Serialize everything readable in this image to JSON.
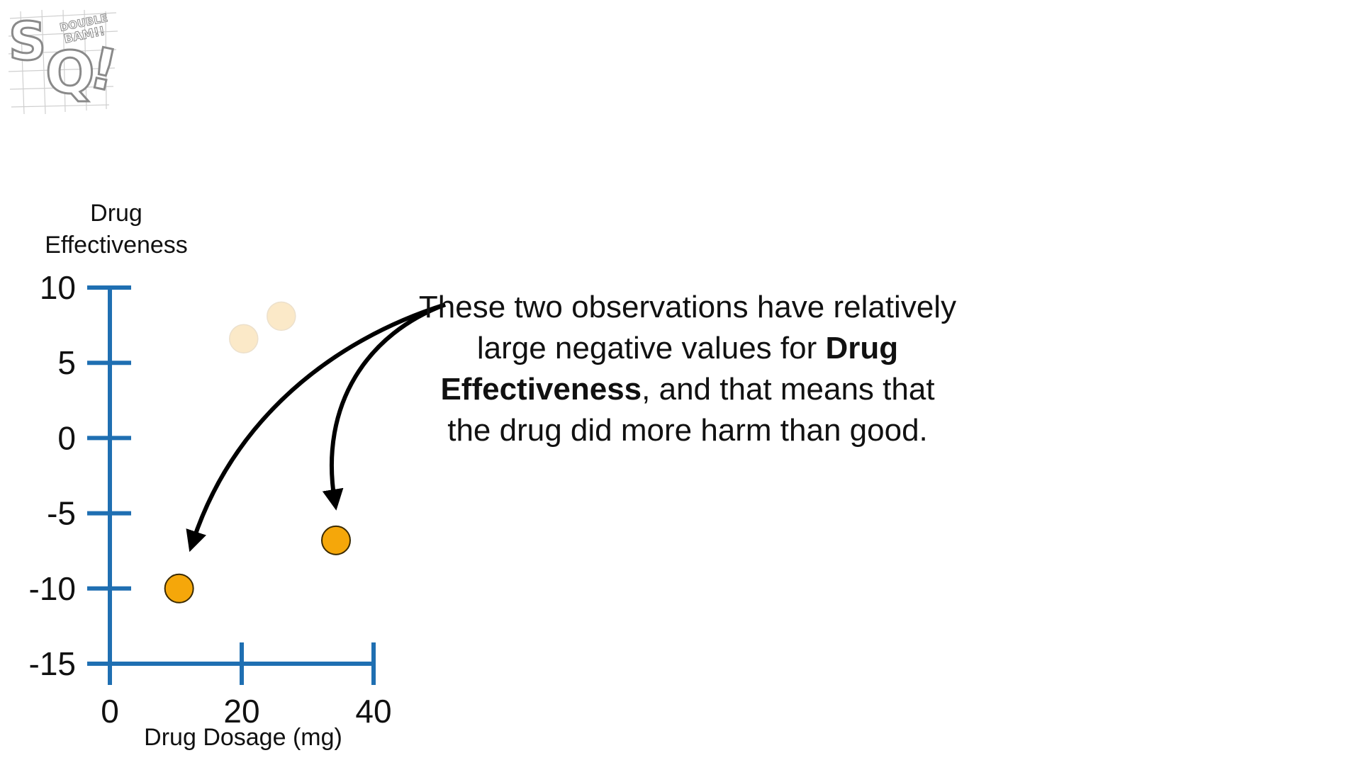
{
  "logo": {
    "primary_text": "SQ!",
    "secondary_text": "DOUBLE BAM!!"
  },
  "annotation": {
    "text_before": "These two observations have relatively large negative values for ",
    "bold_text": "Drug Effectiveness",
    "text_after": ", and that means that the drug did more harm than good."
  },
  "chart_data": {
    "type": "scatter",
    "title": "",
    "xlabel": "Drug Dosage (mg)",
    "ylabel": [
      "Drug",
      "Effectiveness"
    ],
    "xlim": [
      0,
      40
    ],
    "ylim": [
      -15,
      10
    ],
    "x_ticks": [
      0,
      20,
      40
    ],
    "y_ticks": [
      10,
      5,
      0,
      -5,
      -10,
      -15
    ],
    "grid": false,
    "axis_color": "#1f6fb2",
    "series": [
      {
        "role": "faded",
        "color": "#fbe9c8",
        "points": [
          {
            "x": 20.3,
            "y": 6.6
          },
          {
            "x": 26.0,
            "y": 8.1
          }
        ]
      },
      {
        "role": "highlighted",
        "color": "#f5a70a",
        "points": [
          {
            "x": 10.5,
            "y": -10.0
          },
          {
            "x": 34.3,
            "y": -6.8
          }
        ]
      }
    ]
  }
}
